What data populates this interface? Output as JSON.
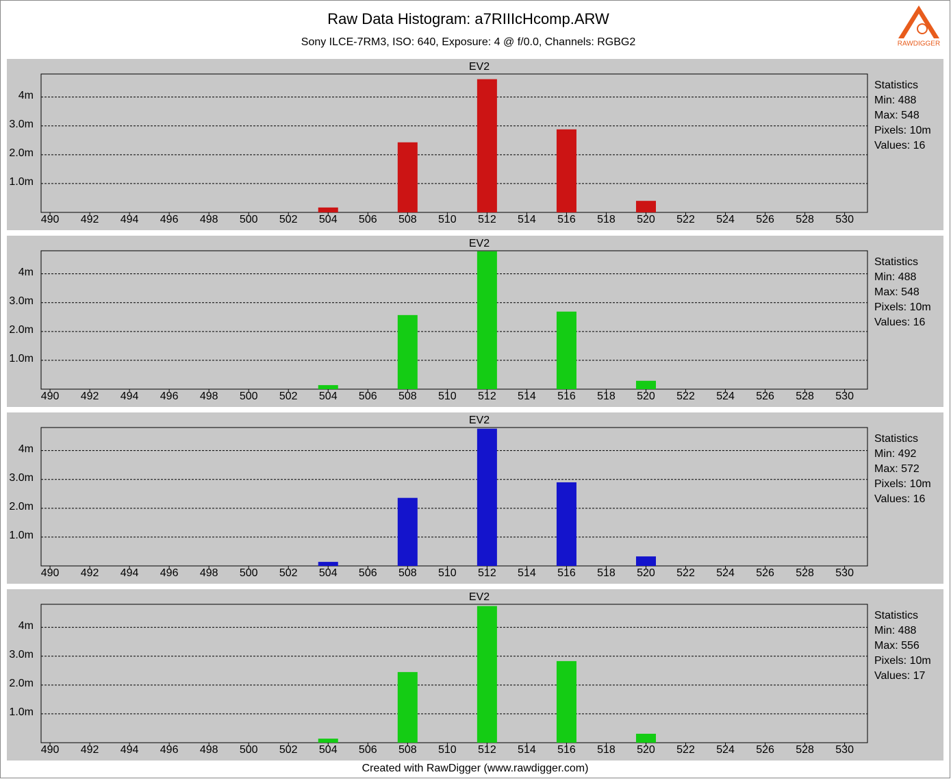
{
  "header": {
    "title": "Raw Data Histogram: a7RIIIcHcomp.ARW",
    "subtitle": "Sony ILCE-7RM3, ISO: 640, Exposure: 4 @ f/0.0, Channels: RGBG2",
    "logo": "RAWDIGGER"
  },
  "footer": "Created with RawDigger (www.rawdigger.com)",
  "chart_data": [
    {
      "type": "bar",
      "title": "EV2",
      "color": "#cc1414",
      "x": [
        504,
        508,
        512,
        516,
        520
      ],
      "values": [
        170000,
        2430000,
        4620000,
        2880000,
        400000
      ],
      "xlim": [
        489.55,
        531.15
      ],
      "xticks": [
        490,
        492,
        494,
        496,
        498,
        500,
        502,
        504,
        506,
        508,
        510,
        512,
        514,
        516,
        518,
        520,
        522,
        524,
        526,
        528,
        530
      ],
      "ylim": [
        0,
        4800000
      ],
      "yticks": [
        {
          "value": 1000000,
          "label": "1.0m"
        },
        {
          "value": 2000000,
          "label": "2.0m"
        },
        {
          "value": 3000000,
          "label": "3.0m"
        },
        {
          "value": 4000000,
          "label": "4m"
        }
      ],
      "grid": true,
      "stats": [
        "Statistics",
        "Min: 488",
        "Max: 548",
        "Pixels: 10m",
        "Values: 16"
      ]
    },
    {
      "type": "bar",
      "title": "EV2",
      "color": "#14cc14",
      "x": [
        504,
        508,
        512,
        516,
        520
      ],
      "values": [
        140000,
        2570000,
        4780000,
        2690000,
        290000
      ],
      "xlim": [
        489.55,
        531.15
      ],
      "xticks": [
        490,
        492,
        494,
        496,
        498,
        500,
        502,
        504,
        506,
        508,
        510,
        512,
        514,
        516,
        518,
        520,
        522,
        524,
        526,
        528,
        530
      ],
      "ylim": [
        0,
        4800000
      ],
      "yticks": [
        {
          "value": 1000000,
          "label": "1.0m"
        },
        {
          "value": 2000000,
          "label": "2.0m"
        },
        {
          "value": 3000000,
          "label": "3.0m"
        },
        {
          "value": 4000000,
          "label": "4m"
        }
      ],
      "grid": true,
      "stats": [
        "Statistics",
        "Min: 488",
        "Max: 548",
        "Pixels: 10m",
        "Values: 16"
      ]
    },
    {
      "type": "bar",
      "title": "EV2",
      "color": "#1414cc",
      "x": [
        504,
        508,
        512,
        516,
        520
      ],
      "values": [
        140000,
        2360000,
        4760000,
        2900000,
        330000
      ],
      "xlim": [
        489.55,
        531.15
      ],
      "xticks": [
        490,
        492,
        494,
        496,
        498,
        500,
        502,
        504,
        506,
        508,
        510,
        512,
        514,
        516,
        518,
        520,
        522,
        524,
        526,
        528,
        530
      ],
      "ylim": [
        0,
        4800000
      ],
      "yticks": [
        {
          "value": 1000000,
          "label": "1.0m"
        },
        {
          "value": 2000000,
          "label": "2.0m"
        },
        {
          "value": 3000000,
          "label": "3.0m"
        },
        {
          "value": 4000000,
          "label": "4m"
        }
      ],
      "grid": true,
      "stats": [
        "Statistics",
        "Min: 492",
        "Max: 572",
        "Pixels: 10m",
        "Values: 16"
      ]
    },
    {
      "type": "bar",
      "title": "EV2",
      "color": "#14cc14",
      "x": [
        504,
        508,
        512,
        516,
        520
      ],
      "values": [
        140000,
        2450000,
        4740000,
        2830000,
        310000
      ],
      "xlim": [
        489.55,
        531.15
      ],
      "xticks": [
        490,
        492,
        494,
        496,
        498,
        500,
        502,
        504,
        506,
        508,
        510,
        512,
        514,
        516,
        518,
        520,
        522,
        524,
        526,
        528,
        530
      ],
      "ylim": [
        0,
        4800000
      ],
      "yticks": [
        {
          "value": 1000000,
          "label": "1.0m"
        },
        {
          "value": 2000000,
          "label": "2.0m"
        },
        {
          "value": 3000000,
          "label": "3.0m"
        },
        {
          "value": 4000000,
          "label": "4m"
        }
      ],
      "grid": true,
      "stats": [
        "Statistics",
        "Min: 488",
        "Max: 556",
        "Pixels: 10m",
        "Values: 17"
      ]
    }
  ]
}
